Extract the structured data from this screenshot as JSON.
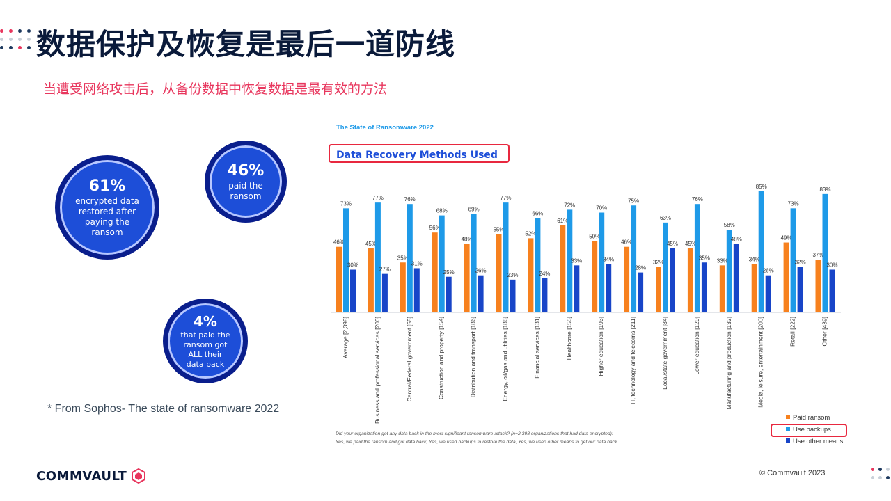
{
  "slide": {
    "title": "数据保护及恢复是最后一道防线",
    "subtitle": "当遭受网络攻击后，从备份数据中恢复数据是最有效的方法",
    "footnote": "* From Sophos- The state of ransomware 2022",
    "brand": "COMMVAULT",
    "copyright": "© Commvault  2023"
  },
  "stats": [
    {
      "value": "61%",
      "lines": [
        "encrypted data",
        "restored after",
        "paying the",
        "ransom"
      ]
    },
    {
      "value": "46%",
      "lines": [
        "paid the",
        "ransom"
      ]
    },
    {
      "value": "4%",
      "lines": [
        "that paid the",
        "ransom got",
        "ALL their",
        "data back"
      ]
    }
  ],
  "colors": {
    "paid": "#f7811e",
    "backups": "#1e9ae8",
    "other": "#1845c8",
    "accent_red": "#e8365d",
    "circle": "#1d4ed8"
  },
  "chart_data": {
    "type": "bar",
    "source": "The State of Ransomware 2022",
    "title": "Data Recovery Methods Used",
    "categories": [
      "Average [2,398]",
      "Business and professional services [200]",
      "Central/Federal government [55]",
      "Construction and property [154]",
      "Distribution and transport [186]",
      "Energy, oil/gas and utilities [188]",
      "Financial services [131]",
      "Healthcare [155]",
      "Higher education [193]",
      "IT, technology and telecoms [211]",
      "Local/state government [84]",
      "Lower education [129]",
      "Manufacturing and production [132]",
      "Media, leisure, entertainment [200]",
      "Retail [222]",
      "Other [439]"
    ],
    "series": [
      {
        "name": "Paid ransom",
        "values": [
          46,
          45,
          35,
          56,
          48,
          55,
          52,
          61,
          50,
          46,
          32,
          45,
          33,
          34,
          49,
          37
        ]
      },
      {
        "name": "Use backups",
        "values": [
          73,
          77,
          76,
          68,
          69,
          77,
          66,
          72,
          70,
          75,
          63,
          76,
          58,
          85,
          73,
          83
        ]
      },
      {
        "name": "Use other means",
        "values": [
          30,
          27,
          31,
          25,
          26,
          23,
          24,
          33,
          34,
          28,
          45,
          35,
          48,
          26,
          32,
          30
        ]
      }
    ],
    "ylim": [
      0,
      100
    ],
    "value_suffix": "%",
    "legend_position": "bottom-right",
    "highlighted_legend": "Use backups",
    "footnote_lines": [
      "Did your organization get any data back in the most significant ransomware attack? (n=2,398 organizations that had data encrypted):",
      "Yes, we paid the ransom and got data back, Yes, we used backups to restore the data, Yes, we used other means to get our data back."
    ]
  }
}
